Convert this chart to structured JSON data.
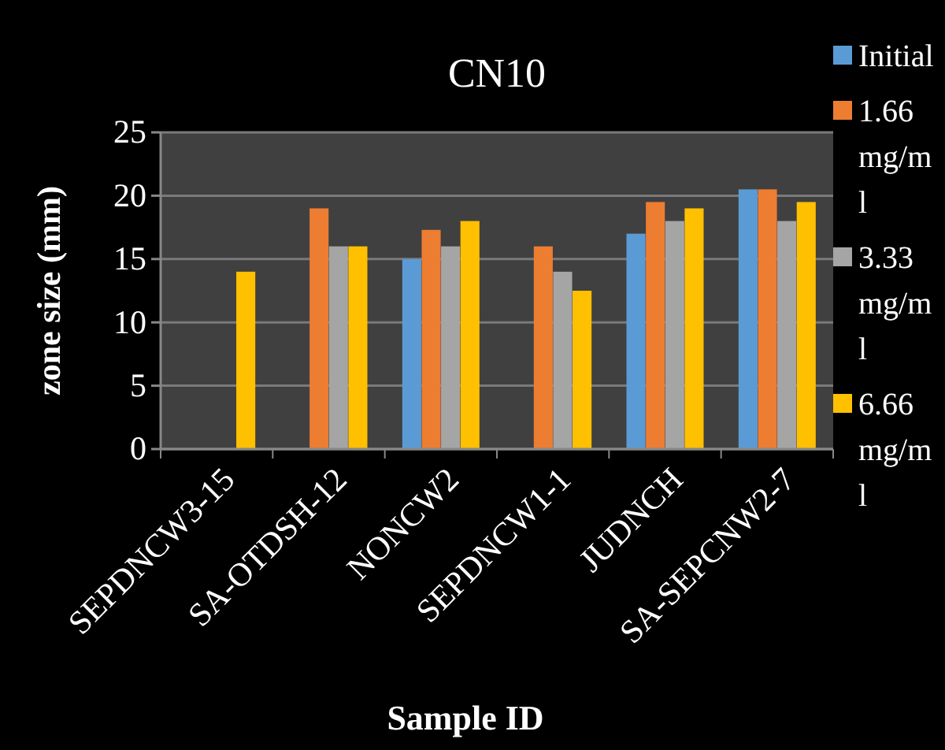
{
  "chart_data": {
    "type": "bar",
    "title": "CN10",
    "xlabel": "Sample ID",
    "ylabel": "zone size (mm)",
    "categories": [
      "SEPDNCW3-15",
      "SA-OTDSH-12",
      "NONCW2",
      "SEPDNCW1-1",
      "JUDNCH",
      "SA-SEPCNW2-7"
    ],
    "series": [
      {
        "name": "Initial",
        "color": "#5b9bd5",
        "values": [
          null,
          null,
          15,
          null,
          17,
          20.5
        ]
      },
      {
        "name": "1.66 mg/ml",
        "color": "#ed7d31",
        "values": [
          null,
          19,
          17.3,
          16,
          19.5,
          20.5
        ]
      },
      {
        "name": "3.33 mg/ml",
        "color": "#a5a5a5",
        "values": [
          null,
          16,
          16,
          14,
          18,
          18
        ]
      },
      {
        "name": "6.66 mg/ml",
        "color": "#ffc000",
        "values": [
          14,
          16,
          18,
          12.5,
          19,
          19.5
        ]
      }
    ],
    "ylim": [
      0,
      25
    ],
    "yticks": [
      0,
      5,
      10,
      15,
      20,
      25
    ],
    "grid": "y",
    "legend": "right"
  }
}
